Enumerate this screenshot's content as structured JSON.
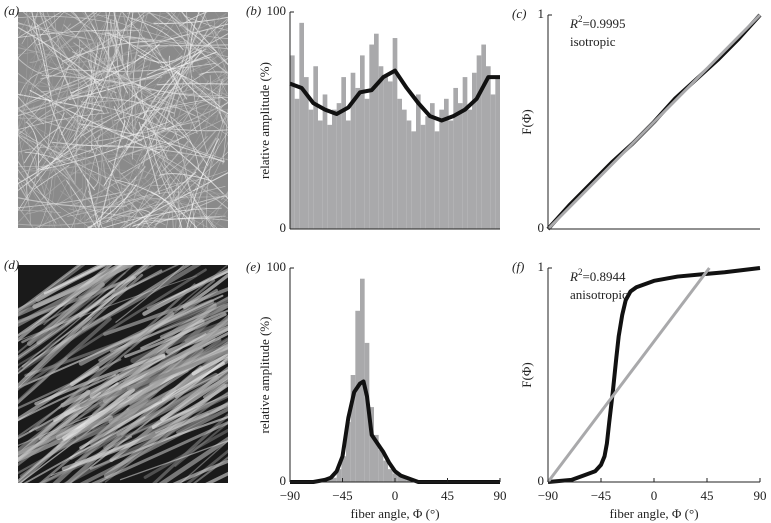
{
  "images": [
    {
      "label": "(a)"
    },
    {
      "label": "(d)"
    }
  ],
  "chart_data": [
    {
      "type": "histogram",
      "label": "(b)",
      "ylabel": "relative amplitude (%)",
      "bins": [
        -90,
        -86,
        -82,
        -78,
        -74,
        -70,
        -66,
        -62,
        -58,
        -54,
        -50,
        -46,
        -42,
        -38,
        -34,
        -30,
        -26,
        -22,
        -18,
        -14,
        -10,
        -6,
        -2,
        2,
        6,
        10,
        14,
        18,
        22,
        26,
        30,
        34,
        38,
        42,
        46,
        50,
        54,
        58,
        62,
        66,
        70,
        74,
        78,
        82,
        86,
        90
      ],
      "values": [
        80,
        60,
        95,
        70,
        55,
        75,
        50,
        62,
        48,
        55,
        58,
        70,
        50,
        72,
        65,
        80,
        60,
        85,
        90,
        75,
        70,
        68,
        88,
        60,
        55,
        50,
        45,
        62,
        48,
        52,
        58,
        45,
        55,
        60,
        50,
        65,
        58,
        70,
        55,
        72,
        80,
        85,
        75,
        62,
        70
      ],
      "color": "#a9a9ab",
      "line": {
        "color": "#111111",
        "x": [
          -90,
          -80,
          -70,
          -60,
          -50,
          -40,
          -30,
          -20,
          -10,
          0,
          10,
          20,
          30,
          40,
          50,
          60,
          70,
          80,
          90
        ],
        "y": [
          67,
          65,
          58,
          55,
          53,
          56,
          63,
          64,
          70,
          73,
          65,
          58,
          52,
          50,
          52,
          55,
          60,
          70,
          70
        ]
      },
      "xlim": [
        -90,
        90
      ],
      "ylim": [
        0,
        100
      ],
      "yticks": [
        0,
        100
      ]
    },
    {
      "type": "line",
      "label": "(c)",
      "ylabel": "F(Φ)",
      "annotation": {
        "symbol": "R",
        "power": "2",
        "value": "=0.9995",
        "note": "isotropic"
      },
      "series": [
        {
          "color": "#111111",
          "x": [
            0,
            0.1,
            0.2,
            0.3,
            0.4,
            0.5,
            0.6,
            0.7,
            0.8,
            0.9,
            1
          ],
          "values": [
            0,
            0.11,
            0.21,
            0.31,
            0.4,
            0.5,
            0.61,
            0.7,
            0.79,
            0.89,
            1
          ]
        },
        {
          "color": "#a9a9ab",
          "x": [
            0,
            1
          ],
          "values": [
            0,
            1
          ]
        }
      ],
      "xlim": [
        0,
        1
      ],
      "ylim": [
        0,
        1
      ],
      "yticks": [
        0,
        1
      ]
    },
    {
      "type": "histogram",
      "label": "(e)",
      "ylabel": "relative amplitude (%)",
      "xlabel": "fiber angle, Φ (°)",
      "bins": [
        -90,
        -86,
        -82,
        -78,
        -74,
        -70,
        -66,
        -62,
        -58,
        -54,
        -50,
        -46,
        -42,
        -38,
        -34,
        -30,
        -26,
        -22,
        -18,
        -14,
        -10,
        -6,
        -2,
        2,
        6,
        10,
        14,
        18,
        22,
        26,
        30,
        34,
        38,
        42,
        46,
        50,
        54,
        58,
        62,
        66,
        70,
        74,
        78,
        82,
        86,
        90
      ],
      "values": [
        0,
        0,
        0,
        0,
        0,
        0,
        0,
        1,
        1,
        2,
        6,
        12,
        28,
        50,
        80,
        95,
        65,
        35,
        22,
        15,
        10,
        6,
        4,
        3,
        2,
        1,
        0,
        0,
        0,
        0,
        0,
        0,
        0,
        0,
        0,
        0,
        0,
        0,
        0,
        0,
        0,
        0,
        0,
        0,
        0
      ],
      "color": "#a9a9ab",
      "line": {
        "color": "#111111",
        "x": [
          -90,
          -70,
          -60,
          -55,
          -50,
          -45,
          -40,
          -35,
          -30,
          -27,
          -24,
          -20,
          -15,
          -10,
          -5,
          0,
          5,
          10,
          15,
          20,
          90
        ],
        "y": [
          0,
          0,
          1,
          2,
          5,
          12,
          30,
          42,
          46,
          47,
          40,
          22,
          18,
          14,
          9,
          5,
          3,
          2,
          1,
          0,
          0
        ]
      },
      "xlim": [
        -90,
        90
      ],
      "ylim": [
        0,
        100
      ],
      "yticks": [
        0,
        100
      ],
      "xticks": [
        {
          "value": -90,
          "label": "−90"
        },
        {
          "value": -45,
          "label": "−45"
        },
        0,
        45,
        90
      ]
    },
    {
      "type": "line",
      "label": "(f)",
      "ylabel": "F(Φ)",
      "xlabel": "fiber angle, Φ (°)",
      "annotation": {
        "symbol": "R",
        "power": "2",
        "value": "=0.8944",
        "note": "anisotropic"
      },
      "series": [
        {
          "color": "#111111",
          "x": [
            -90,
            -70,
            -60,
            -50,
            -45,
            -42,
            -40,
            -38,
            -35,
            -32,
            -30,
            -27,
            -24,
            -20,
            -15,
            -10,
            -5,
            0,
            10,
            20,
            40,
            60,
            90
          ],
          "values": [
            0,
            0.01,
            0.03,
            0.05,
            0.08,
            0.12,
            0.18,
            0.28,
            0.42,
            0.58,
            0.68,
            0.78,
            0.85,
            0.89,
            0.91,
            0.92,
            0.93,
            0.94,
            0.95,
            0.96,
            0.97,
            0.98,
            1.0
          ]
        },
        {
          "color": "#a9a9ab",
          "x": [
            -90,
            47
          ],
          "values": [
            0,
            1
          ]
        }
      ],
      "xlim": [
        -90,
        90
      ],
      "ylim": [
        0,
        1
      ],
      "yticks": [
        0,
        1
      ],
      "xticks": [
        {
          "value": -90,
          "label": "−90"
        },
        {
          "value": -45,
          "label": "−45"
        },
        0,
        45,
        90
      ]
    }
  ]
}
